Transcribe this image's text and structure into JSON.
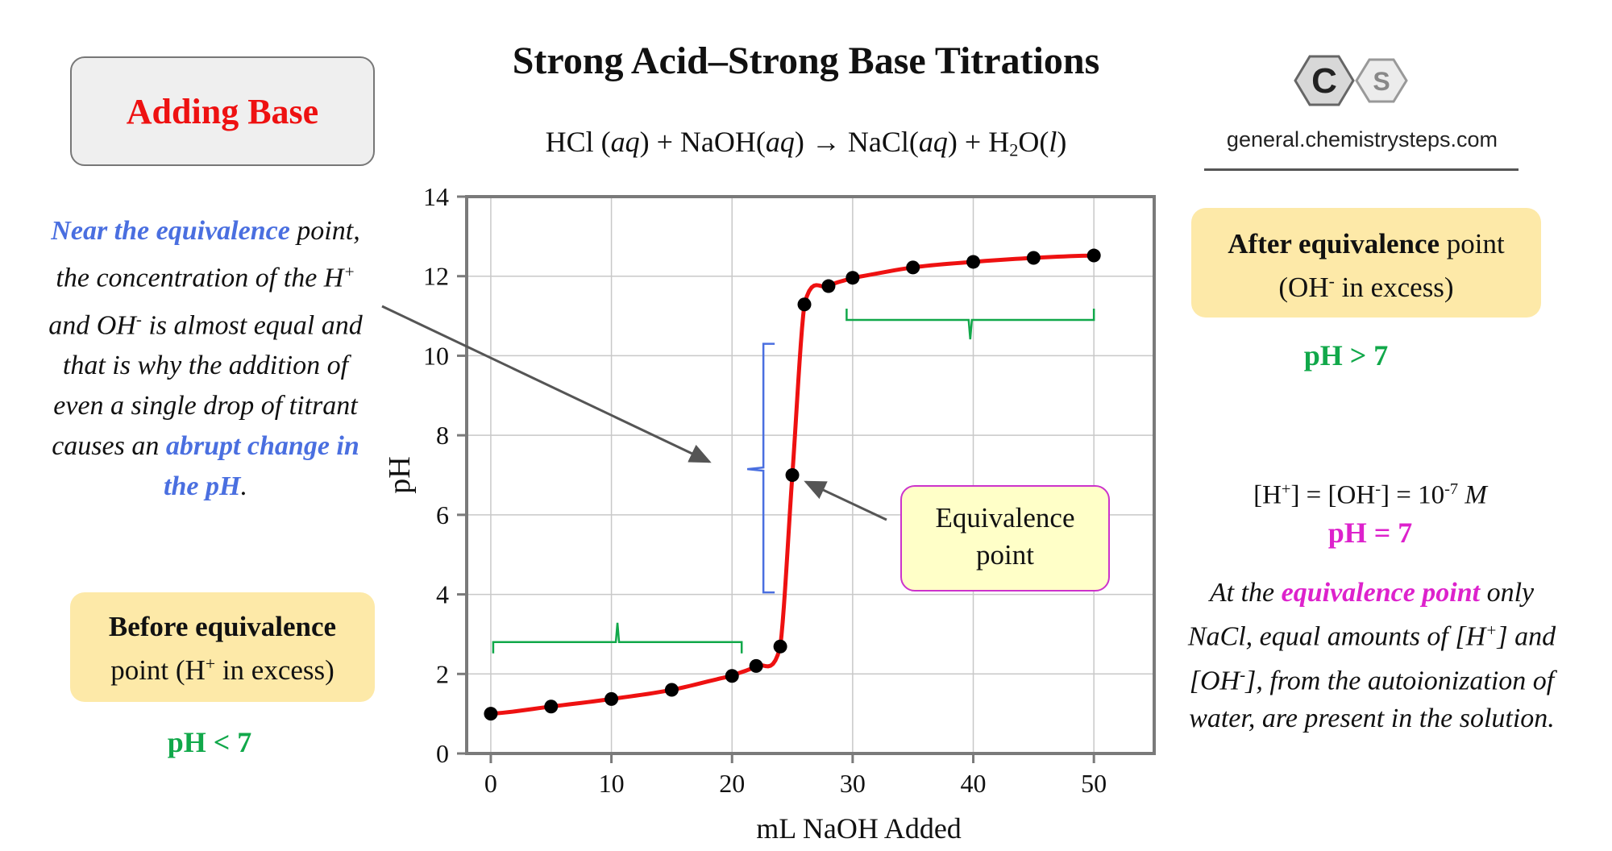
{
  "title": "Strong Acid–Strong Base Titrations",
  "equation": {
    "reactant1": "HCl",
    "aq1": "aq",
    "plus1": "+",
    "reactant2": "NaOH",
    "aq2": "aq",
    "arrow": "→",
    "product1": "NaCl",
    "aq3": "aq",
    "plus2": "+",
    "product2_base": "H",
    "product2_sub": "2",
    "product2_end": "O",
    "state_l": "l"
  },
  "adding_base": "Adding Base",
  "logo": {
    "letter_c": "C",
    "letter_s": "S",
    "url": "general.chemistrysteps.com",
    "colors": {
      "hex_dark": "#555555",
      "hex_light": "#cfcfcf"
    }
  },
  "left_text": {
    "lead": "Near the equivalence",
    "line_a": "point, the concentration of the H",
    "sup_plus": "+",
    "line_b": " and OH",
    "sup_minus": "-",
    "line_c": " is almost equal and that is why the addition of even a single drop of titrant causes an ",
    "emph": "abrupt change in the pH",
    "period": "."
  },
  "before_box": {
    "bold": "Before equivalence",
    "line2_a": "point (H",
    "sup": "+",
    "line2_b": " in excess)"
  },
  "ph_less": "pH < 7",
  "after_box": {
    "bold": "After equivalence",
    "rest": " point",
    "line2_a": "(OH",
    "sup": "-",
    "line2_b": " in excess)"
  },
  "ph_greater": "pH > 7",
  "conc_eq": {
    "a": "[H",
    "sup1": "+",
    "b": "] = [OH",
    "sup2": "-",
    "c": "] = 10",
    "sup3": "-7",
    "d": " ",
    "m": "M"
  },
  "ph_equal": "pH = 7",
  "equiv_explanation": {
    "a": "At the ",
    "emph": "equivalence point",
    "b": " only NaCl, equal amounts of [H",
    "sup1": "+",
    "c": "] and [OH",
    "sup2": "-",
    "d": "], from the autoionization of water, are present in the solution."
  },
  "equivalence_callout": {
    "line1": "Equivalence",
    "line2": "point"
  },
  "colors": {
    "curve": "#ee1111",
    "point": "#000000",
    "green_brace": "#11a84a",
    "blue_brace": "#4a6fe0",
    "grid": "#c8c8c8"
  },
  "chart_data": {
    "type": "line",
    "xlabel": "mL NaOH Added",
    "ylabel": "pH",
    "xlim": [
      -2,
      55
    ],
    "ylim": [
      0,
      14
    ],
    "x_ticks": [
      0,
      10,
      20,
      30,
      40,
      50
    ],
    "y_ticks": [
      0,
      2,
      4,
      6,
      8,
      10,
      12,
      14
    ],
    "grid": true,
    "series": [
      {
        "points": [
          {
            "x": 0,
            "y": 1.0
          },
          {
            "x": 5,
            "y": 1.18
          },
          {
            "x": 10,
            "y": 1.37
          },
          {
            "x": 15,
            "y": 1.6
          },
          {
            "x": 20,
            "y": 1.95
          },
          {
            "x": 22,
            "y": 2.2
          },
          {
            "x": 24,
            "y": 2.69
          },
          {
            "x": 25,
            "y": 7.0
          },
          {
            "x": 26,
            "y": 11.29
          },
          {
            "x": 28,
            "y": 11.75
          },
          {
            "x": 30,
            "y": 11.96
          },
          {
            "x": 35,
            "y": 12.22
          },
          {
            "x": 40,
            "y": 12.36
          },
          {
            "x": 45,
            "y": 12.46
          },
          {
            "x": 50,
            "y": 12.52
          }
        ]
      }
    ]
  }
}
